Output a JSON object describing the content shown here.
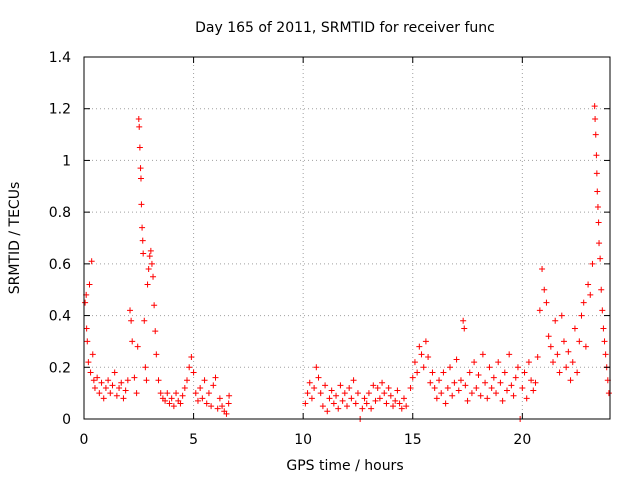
{
  "chart_data": {
    "type": "scatter",
    "title": "Day 165 of 2011, SRMTID for receiver func",
    "xlabel": "GPS time / hours",
    "ylabel": "SRMTID / TECUs",
    "xlim": [
      0,
      24
    ],
    "ylim": [
      0,
      1.4
    ],
    "xticks": [
      0,
      5,
      10,
      15,
      20
    ],
    "yticks": [
      0,
      0.2,
      0.4,
      0.6,
      0.8,
      1,
      1.2,
      1.4
    ],
    "marker": "+",
    "color": "#ff0000",
    "grid": true,
    "series": [
      {
        "name": "SRMTID",
        "points": [
          [
            0.05,
            0.45
          ],
          [
            0.1,
            0.48
          ],
          [
            0.12,
            0.35
          ],
          [
            0.15,
            0.3
          ],
          [
            0.2,
            0.22
          ],
          [
            0.25,
            0.52
          ],
          [
            0.3,
            0.18
          ],
          [
            0.35,
            0.61
          ],
          [
            0.4,
            0.25
          ],
          [
            0.45,
            0.15
          ],
          [
            0.5,
            0.12
          ],
          [
            0.6,
            0.16
          ],
          [
            0.7,
            0.1
          ],
          [
            0.8,
            0.14
          ],
          [
            0.9,
            0.08
          ],
          [
            1.0,
            0.12
          ],
          [
            1.1,
            0.15
          ],
          [
            1.2,
            0.1
          ],
          [
            1.3,
            0.13
          ],
          [
            1.4,
            0.18
          ],
          [
            1.5,
            0.09
          ],
          [
            1.6,
            0.12
          ],
          [
            1.7,
            0.14
          ],
          [
            1.8,
            0.08
          ],
          [
            1.9,
            0.11
          ],
          [
            2.0,
            0.15
          ],
          [
            2.1,
            0.42
          ],
          [
            2.15,
            0.38
          ],
          [
            2.2,
            0.3
          ],
          [
            2.3,
            0.16
          ],
          [
            2.4,
            0.1
          ],
          [
            2.45,
            0.28
          ],
          [
            2.5,
            1.16
          ],
          [
            2.52,
            1.13
          ],
          [
            2.55,
            1.05
          ],
          [
            2.58,
            0.97
          ],
          [
            2.6,
            0.93
          ],
          [
            2.62,
            0.83
          ],
          [
            2.65,
            0.74
          ],
          [
            2.68,
            0.69
          ],
          [
            2.7,
            0.64
          ],
          [
            2.75,
            0.38
          ],
          [
            2.8,
            0.2
          ],
          [
            2.85,
            0.15
          ],
          [
            2.9,
            0.52
          ],
          [
            2.95,
            0.58
          ],
          [
            3.0,
            0.63
          ],
          [
            3.05,
            0.65
          ],
          [
            3.1,
            0.6
          ],
          [
            3.15,
            0.55
          ],
          [
            3.2,
            0.44
          ],
          [
            3.25,
            0.34
          ],
          [
            3.3,
            0.25
          ],
          [
            3.4,
            0.15
          ],
          [
            3.5,
            0.1
          ],
          [
            3.6,
            0.08
          ],
          [
            3.7,
            0.07
          ],
          [
            3.8,
            0.1
          ],
          [
            3.9,
            0.06
          ],
          [
            4.0,
            0.08
          ],
          [
            4.1,
            0.05
          ],
          [
            4.2,
            0.1
          ],
          [
            4.3,
            0.07
          ],
          [
            4.4,
            0.06
          ],
          [
            4.5,
            0.09
          ],
          [
            4.6,
            0.12
          ],
          [
            4.7,
            0.15
          ],
          [
            4.8,
            0.2
          ],
          [
            4.9,
            0.24
          ],
          [
            5.0,
            0.18
          ],
          [
            5.1,
            0.1
          ],
          [
            5.2,
            0.07
          ],
          [
            5.3,
            0.12
          ],
          [
            5.4,
            0.08
          ],
          [
            5.5,
            0.15
          ],
          [
            5.6,
            0.06
          ],
          [
            5.7,
            0.1
          ],
          [
            5.8,
            0.05
          ],
          [
            5.9,
            0.13
          ],
          [
            6.0,
            0.16
          ],
          [
            6.1,
            0.04
          ],
          [
            6.2,
            0.08
          ],
          [
            6.3,
            0.05
          ],
          [
            6.4,
            0.03
          ],
          [
            6.5,
            0.02
          ],
          [
            6.6,
            0.06
          ],
          [
            6.62,
            0.09
          ],
          [
            10.1,
            0.06
          ],
          [
            10.2,
            0.1
          ],
          [
            10.3,
            0.14
          ],
          [
            10.4,
            0.08
          ],
          [
            10.5,
            0.12
          ],
          [
            10.6,
            0.2
          ],
          [
            10.7,
            0.16
          ],
          [
            10.8,
            0.1
          ],
          [
            10.9,
            0.05
          ],
          [
            11.0,
            0.13
          ],
          [
            11.1,
            0.03
          ],
          [
            11.2,
            0.08
          ],
          [
            11.3,
            0.11
          ],
          [
            11.4,
            0.06
          ],
          [
            11.5,
            0.09
          ],
          [
            11.6,
            0.04
          ],
          [
            11.7,
            0.13
          ],
          [
            11.8,
            0.07
          ],
          [
            11.9,
            0.1
          ],
          [
            12.0,
            0.05
          ],
          [
            12.1,
            0.12
          ],
          [
            12.2,
            0.08
          ],
          [
            12.3,
            0.15
          ],
          [
            12.4,
            0.06
          ],
          [
            12.5,
            0.1
          ],
          [
            12.6,
            0.0
          ],
          [
            12.7,
            0.04
          ],
          [
            12.8,
            0.08
          ],
          [
            12.9,
            0.06
          ],
          [
            13.0,
            0.1
          ],
          [
            13.1,
            0.04
          ],
          [
            13.2,
            0.13
          ],
          [
            13.3,
            0.07
          ],
          [
            13.4,
            0.12
          ],
          [
            13.5,
            0.08
          ],
          [
            13.6,
            0.14
          ],
          [
            13.7,
            0.1
          ],
          [
            13.8,
            0.06
          ],
          [
            13.9,
            0.12
          ],
          [
            14.0,
            0.09
          ],
          [
            14.1,
            0.05
          ],
          [
            14.2,
            0.07
          ],
          [
            14.3,
            0.11
          ],
          [
            14.4,
            0.06
          ],
          [
            14.5,
            0.04
          ],
          [
            14.6,
            0.08
          ],
          [
            14.7,
            0.05
          ],
          [
            14.9,
            0.12
          ],
          [
            15.0,
            0.16
          ],
          [
            15.1,
            0.22
          ],
          [
            15.2,
            0.18
          ],
          [
            15.3,
            0.28
          ],
          [
            15.4,
            0.25
          ],
          [
            15.5,
            0.2
          ],
          [
            15.6,
            0.3
          ],
          [
            15.7,
            0.24
          ],
          [
            15.8,
            0.14
          ],
          [
            15.9,
            0.18
          ],
          [
            16.0,
            0.12
          ],
          [
            16.1,
            0.08
          ],
          [
            16.2,
            0.15
          ],
          [
            16.3,
            0.1
          ],
          [
            16.4,
            0.18
          ],
          [
            16.5,
            0.06
          ],
          [
            16.6,
            0.12
          ],
          [
            16.7,
            0.2
          ],
          [
            16.8,
            0.09
          ],
          [
            16.9,
            0.14
          ],
          [
            17.0,
            0.23
          ],
          [
            17.1,
            0.11
          ],
          [
            17.2,
            0.15
          ],
          [
            17.3,
            0.38
          ],
          [
            17.35,
            0.35
          ],
          [
            17.4,
            0.13
          ],
          [
            17.5,
            0.07
          ],
          [
            17.6,
            0.18
          ],
          [
            17.7,
            0.1
          ],
          [
            17.8,
            0.22
          ],
          [
            17.9,
            0.12
          ],
          [
            18.0,
            0.17
          ],
          [
            18.1,
            0.09
          ],
          [
            18.2,
            0.25
          ],
          [
            18.3,
            0.14
          ],
          [
            18.4,
            0.08
          ],
          [
            18.5,
            0.2
          ],
          [
            18.6,
            0.12
          ],
          [
            18.7,
            0.16
          ],
          [
            18.8,
            0.1
          ],
          [
            18.9,
            0.22
          ],
          [
            19.0,
            0.14
          ],
          [
            19.1,
            0.07
          ],
          [
            19.2,
            0.18
          ],
          [
            19.3,
            0.11
          ],
          [
            19.4,
            0.25
          ],
          [
            19.5,
            0.13
          ],
          [
            19.6,
            0.09
          ],
          [
            19.7,
            0.16
          ],
          [
            19.8,
            0.2
          ],
          [
            19.9,
            0.0
          ],
          [
            20.0,
            0.12
          ],
          [
            20.1,
            0.18
          ],
          [
            20.2,
            0.08
          ],
          [
            20.3,
            0.22
          ],
          [
            20.4,
            0.15
          ],
          [
            20.5,
            0.11
          ],
          [
            20.6,
            0.14
          ],
          [
            20.7,
            0.24
          ],
          [
            20.8,
            0.42
          ],
          [
            20.9,
            0.58
          ],
          [
            21.0,
            0.5
          ],
          [
            21.1,
            0.45
          ],
          [
            21.2,
            0.32
          ],
          [
            21.3,
            0.28
          ],
          [
            21.4,
            0.22
          ],
          [
            21.5,
            0.38
          ],
          [
            21.6,
            0.25
          ],
          [
            21.7,
            0.18
          ],
          [
            21.8,
            0.4
          ],
          [
            21.9,
            0.3
          ],
          [
            22.0,
            0.2
          ],
          [
            22.1,
            0.26
          ],
          [
            22.2,
            0.15
          ],
          [
            22.3,
            0.22
          ],
          [
            22.4,
            0.35
          ],
          [
            22.5,
            0.18
          ],
          [
            22.6,
            0.3
          ],
          [
            22.7,
            0.4
          ],
          [
            22.8,
            0.45
          ],
          [
            22.9,
            0.28
          ],
          [
            23.0,
            0.52
          ],
          [
            23.1,
            0.48
          ],
          [
            23.2,
            0.6
          ],
          [
            23.3,
            1.21
          ],
          [
            23.32,
            1.16
          ],
          [
            23.35,
            1.1
          ],
          [
            23.38,
            1.02
          ],
          [
            23.4,
            0.95
          ],
          [
            23.42,
            0.88
          ],
          [
            23.45,
            0.82
          ],
          [
            23.48,
            0.76
          ],
          [
            23.5,
            0.68
          ],
          [
            23.55,
            0.62
          ],
          [
            23.6,
            0.5
          ],
          [
            23.65,
            0.42
          ],
          [
            23.7,
            0.35
          ],
          [
            23.75,
            0.3
          ],
          [
            23.8,
            0.25
          ],
          [
            23.85,
            0.2
          ],
          [
            23.9,
            0.15
          ],
          [
            23.95,
            0.1
          ]
        ]
      }
    ]
  }
}
